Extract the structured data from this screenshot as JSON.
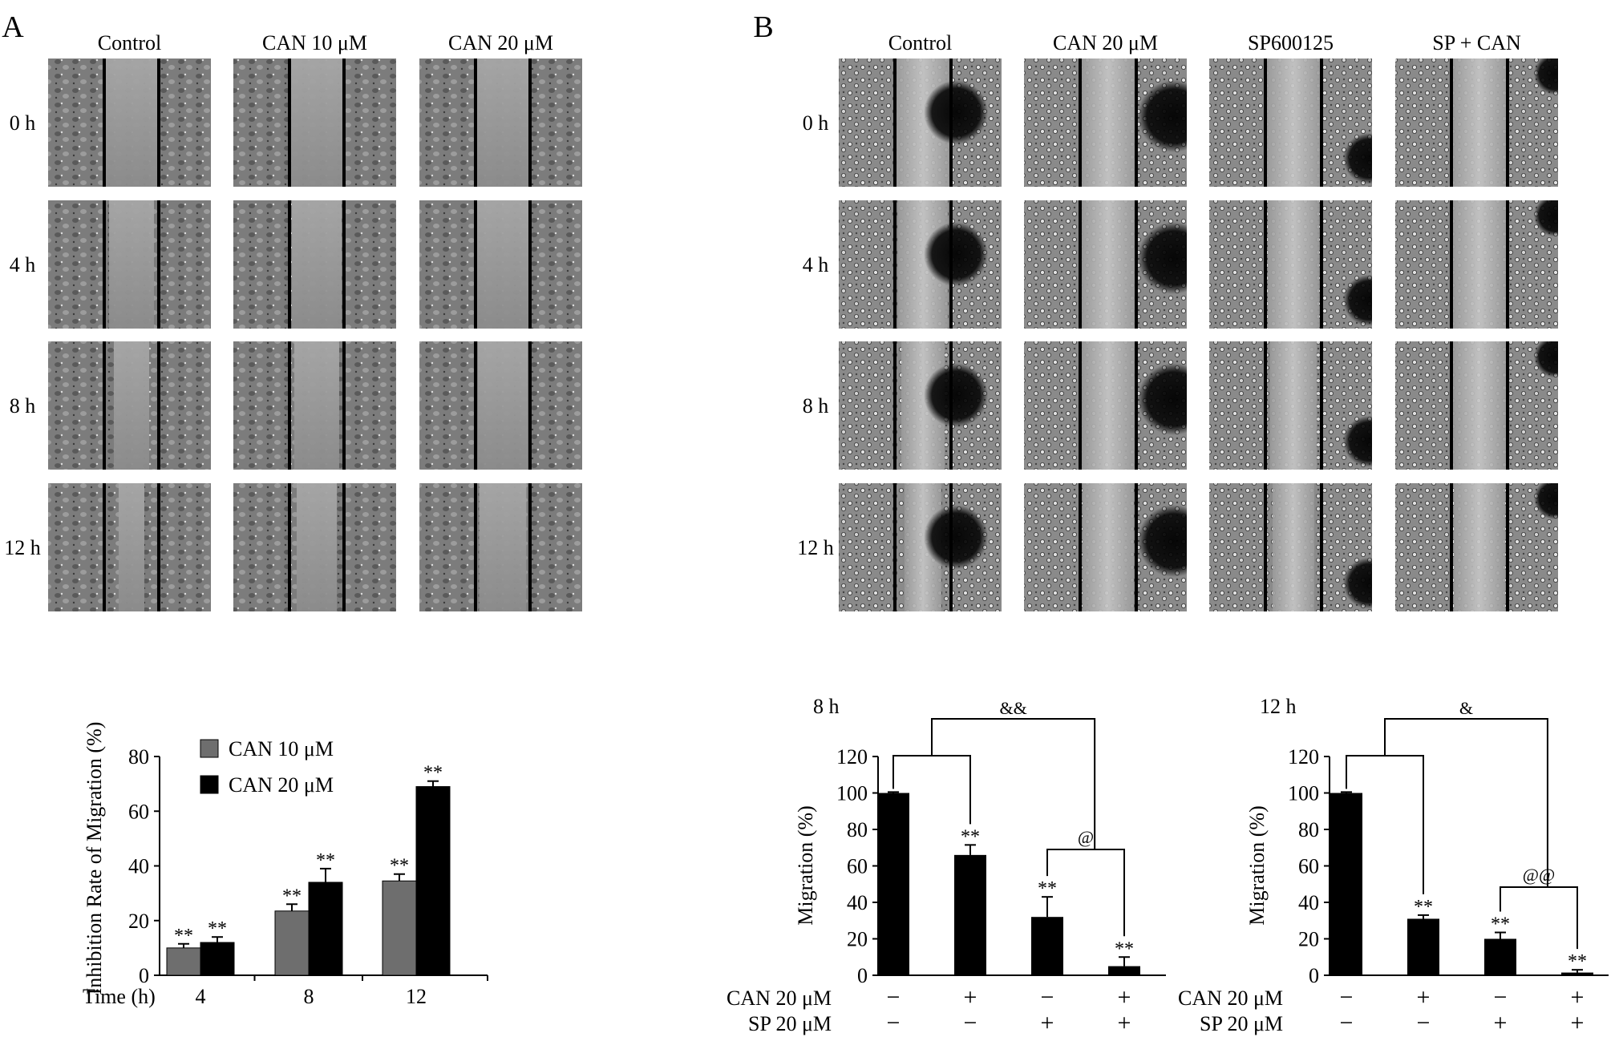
{
  "figure": {
    "panel_a": {
      "letter": "A",
      "columns": [
        "Control",
        "CAN 10 μM",
        "CAN 20 μM"
      ],
      "rows": [
        "0 h",
        "4 h",
        "8 h",
        "12 h"
      ]
    },
    "panel_b": {
      "letter": "B",
      "columns": [
        "Control",
        "CAN 20 μM",
        "SP600125",
        "SP + CAN"
      ],
      "rows": [
        "0 h",
        "4 h",
        "8 h",
        "12 h"
      ]
    }
  },
  "chart_data": [
    {
      "type": "bar",
      "ylabel": "Inhibition Rate of Migration (%)",
      "xlabel": "Time (h)",
      "categories": [
        "4",
        "8",
        "12"
      ],
      "ylim": [
        0,
        80
      ],
      "yticks": [
        0,
        20,
        40,
        60,
        80
      ],
      "legend_position": "top-left",
      "series": [
        {
          "name": "CAN 10 μM",
          "color": "#6e6e6e",
          "values": [
            10,
            23.5,
            34.5
          ],
          "errors": [
            1.5,
            2.5,
            2.5
          ],
          "labels": [
            "**",
            "**",
            "**"
          ]
        },
        {
          "name": "CAN 20 μM",
          "color": "#000000",
          "values": [
            12,
            34,
            69
          ],
          "errors": [
            2,
            5,
            2
          ],
          "labels": [
            "**",
            "**",
            "**"
          ]
        }
      ]
    },
    {
      "type": "bar",
      "title": "8 h",
      "ylabel": "Migration (%)",
      "ylim": [
        0,
        120
      ],
      "yticks": [
        0,
        20,
        40,
        60,
        80,
        100,
        120
      ],
      "conditions": [
        {
          "name": "CAN 20 μM",
          "marks": [
            "−",
            "+",
            "−",
            "+"
          ]
        },
        {
          "name": "SP 20 μM",
          "marks": [
            "−",
            "−",
            "+",
            "+"
          ]
        }
      ],
      "values": [
        100,
        66,
        32,
        5
      ],
      "errors": [
        0.5,
        5.5,
        11,
        5
      ],
      "labels": [
        "",
        "**",
        "**",
        "**"
      ],
      "color": "#000000",
      "brackets": [
        {
          "from": 0,
          "to": 1,
          "label": ""
        },
        {
          "from": 2,
          "to": 3,
          "label": "@"
        },
        {
          "from": "0-1",
          "to": 3,
          "label": "&&"
        }
      ]
    },
    {
      "type": "bar",
      "title": "12 h",
      "ylabel": "Migration (%)",
      "ylim": [
        0,
        120
      ],
      "yticks": [
        0,
        20,
        40,
        60,
        80,
        100,
        120
      ],
      "conditions": [
        {
          "name": "CAN 20 μM",
          "marks": [
            "−",
            "+",
            "−",
            "+"
          ]
        },
        {
          "name": "SP 20 μM",
          "marks": [
            "−",
            "−",
            "+",
            "+"
          ]
        }
      ],
      "values": [
        100,
        31,
        20,
        1.5
      ],
      "errors": [
        0.5,
        2,
        3.5,
        1.5
      ],
      "labels": [
        "",
        "**",
        "**",
        "**"
      ],
      "color": "#000000",
      "brackets": [
        {
          "from": 0,
          "to": 1,
          "label": ""
        },
        {
          "from": 2,
          "to": 3,
          "label": "@@"
        },
        {
          "from": "0-1",
          "to": 3,
          "label": "&"
        }
      ]
    }
  ]
}
